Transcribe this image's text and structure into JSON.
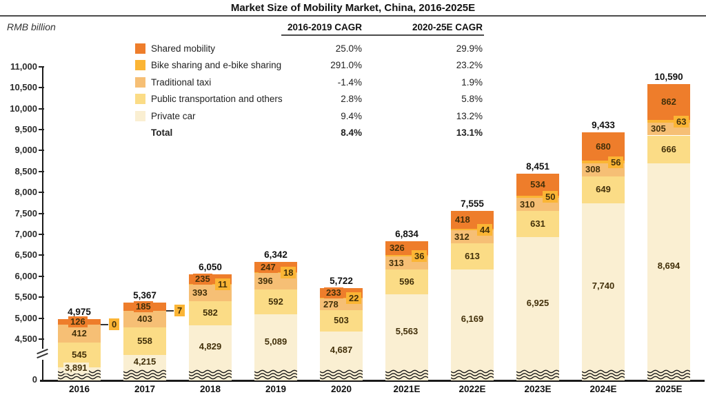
{
  "title": "Market Size of Mobility Market, China, 2016-2025E",
  "unit_label": "RMB billion",
  "cagr_table": {
    "col1_header": "2016-2019 CAGR",
    "col2_header": "2020-25E CAGR",
    "rows": [
      {
        "label": "Shared mobility",
        "color": "#EE7D2B",
        "cagr1": "25.0%",
        "cagr2": "29.9%",
        "total": false
      },
      {
        "label": "Bike sharing and e-bike sharing",
        "color": "#FBB535",
        "cagr1": "291.0%",
        "cagr2": "23.2%",
        "total": false
      },
      {
        "label": "Traditional taxi",
        "color": "#F6BF75",
        "cagr1": "-1.4%",
        "cagr2": "1.9%",
        "total": false
      },
      {
        "label": "Public transportation and others",
        "color": "#FBDC86",
        "cagr1": "2.8%",
        "cagr2": "5.8%",
        "total": false
      },
      {
        "label": "Private car",
        "color": "#FAEFD2",
        "cagr1": "9.4%",
        "cagr2": "13.2%",
        "total": false
      },
      {
        "label": "Total",
        "color": null,
        "cagr1": "8.4%",
        "cagr2": "13.1%",
        "total": true
      }
    ]
  },
  "chart_data": {
    "type": "bar",
    "stacked": true,
    "title": "Market Size of Mobility Market, China, 2016-2025E",
    "ylabel": "RMB billion",
    "ylim": [
      0,
      11000
    ],
    "axis_break": true,
    "grid": false,
    "categories": [
      "2016",
      "2017",
      "2018",
      "2019",
      "2020",
      "2021E",
      "2022E",
      "2023E",
      "2024E",
      "2025E"
    ],
    "totals": [
      4975,
      5367,
      6050,
      6342,
      5722,
      6834,
      7555,
      8451,
      9433,
      10590
    ],
    "totals_labels": [
      "4,975",
      "5,367",
      "6,050",
      "6,342",
      "5,722",
      "6,834",
      "7,555",
      "8,451",
      "9,433",
      "10,590"
    ],
    "series": [
      {
        "name": "Shared mobility",
        "color": "#EE7D2B",
        "values": [
          126,
          185,
          235,
          247,
          233,
          326,
          418,
          534,
          680,
          862
        ]
      },
      {
        "name": "Bike sharing and e-bike sharing",
        "color": "#FBB535",
        "values": [
          0,
          7,
          11,
          18,
          22,
          36,
          44,
          50,
          56,
          63
        ]
      },
      {
        "name": "Traditional taxi",
        "color": "#F6BF75",
        "values": [
          412,
          403,
          393,
          396,
          278,
          313,
          312,
          310,
          308,
          305
        ]
      },
      {
        "name": "Public transportation and others",
        "color": "#FBDC86",
        "values": [
          545,
          558,
          582,
          592,
          503,
          596,
          613,
          631,
          649,
          666
        ]
      },
      {
        "name": "Private car",
        "color": "#FAEFD2",
        "values": [
          3891,
          4215,
          4829,
          5089,
          4687,
          5563,
          6169,
          6925,
          7740,
          8694
        ]
      }
    ],
    "y_ticks": [
      4500,
      5000,
      5500,
      6000,
      6500,
      7000,
      7500,
      8000,
      8500,
      9000,
      9500,
      10000,
      10500,
      11000
    ],
    "y_tick_labels": [
      "4,500",
      "5,000",
      "5,500",
      "6,000",
      "6,500",
      "7,000",
      "7,500",
      "8,000",
      "8,500",
      "9,000",
      "9,500",
      "10,000",
      "10,500",
      "11,000"
    ],
    "y_zero_label": "0"
  }
}
